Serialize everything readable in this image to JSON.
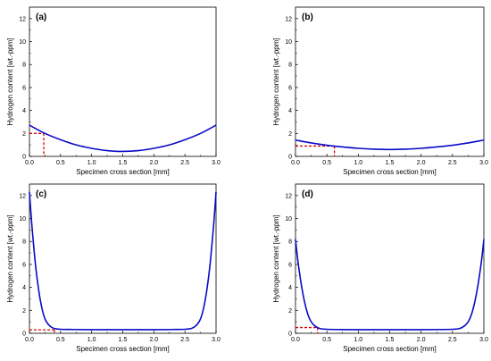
{
  "chart_data": [
    {
      "type": "line",
      "panel_label": "(a)",
      "xlabel": "Specimen cross section [mm]",
      "ylabel": "Hydrogen content [wt.-ppm]",
      "xlim": [
        0,
        3.0
      ],
      "ylim": [
        0,
        13
      ],
      "x_ticks": [
        "0.0",
        "0.5",
        "1.0",
        "1.5",
        "2.0",
        "2.5",
        "3.0"
      ],
      "y_ticks": [
        "0",
        "2",
        "4",
        "6",
        "8",
        "10",
        "12"
      ],
      "series": [
        {
          "color": "#0a0ac8",
          "x": [
            0,
            0.25,
            0.5,
            0.75,
            1.0,
            1.25,
            1.5,
            1.75,
            2.0,
            2.25,
            2.5,
            2.75,
            3.0
          ],
          "y": [
            2.72,
            2.0,
            1.45,
            1.0,
            0.7,
            0.5,
            0.43,
            0.5,
            0.7,
            1.0,
            1.45,
            2.0,
            2.72
          ]
        }
      ],
      "reference": {
        "x": 0.23,
        "y": 2.0,
        "color": "#e00000",
        "style": "dashed"
      }
    },
    {
      "type": "line",
      "panel_label": "(b)",
      "xlabel": "Specimen cross section [mm]",
      "ylabel": "Hydrogen content [wt.-ppm]",
      "xlim": [
        0,
        3.0
      ],
      "ylim": [
        0,
        13
      ],
      "x_ticks": [
        "0.0",
        "0.5",
        "1.0",
        "1.5",
        "2.0",
        "2.5",
        "3.0"
      ],
      "y_ticks": [
        "0",
        "2",
        "4",
        "6",
        "8",
        "10",
        "12"
      ],
      "series": [
        {
          "color": "#0a0ac8",
          "x": [
            0,
            0.25,
            0.5,
            0.75,
            1.0,
            1.25,
            1.5,
            1.75,
            2.0,
            2.25,
            2.5,
            2.75,
            3.0
          ],
          "y": [
            1.42,
            1.17,
            0.97,
            0.82,
            0.7,
            0.63,
            0.6,
            0.63,
            0.7,
            0.82,
            0.97,
            1.17,
            1.42
          ]
        }
      ],
      "reference": {
        "x": 0.62,
        "y": 0.9,
        "color": "#e00000",
        "style": "dashed"
      }
    },
    {
      "type": "line",
      "panel_label": "(c)",
      "xlabel": "Specimen cross section [mm]",
      "ylabel": "Hydrogen content [wt.-ppm]",
      "xlim": [
        0,
        3.0
      ],
      "ylim": [
        0,
        13
      ],
      "x_ticks": [
        "0.0",
        "0.5",
        "1.0",
        "1.5",
        "2.0",
        "2.5",
        "3.0"
      ],
      "y_ticks": [
        "0",
        "2",
        "4",
        "6",
        "8",
        "10",
        "12"
      ],
      "series": [
        {
          "color": "#0a0ac8",
          "x": [
            0,
            0.025,
            0.05,
            0.1,
            0.15,
            0.2,
            0.25,
            0.3,
            0.35,
            0.4,
            0.5,
            0.7,
            1.0,
            1.5,
            2.0,
            2.3,
            2.5,
            2.6,
            2.65,
            2.7,
            2.75,
            2.8,
            2.85,
            2.9,
            2.95,
            2.975,
            3.0
          ],
          "y": [
            12.3,
            10.4,
            8.7,
            5.8,
            3.7,
            2.2,
            1.25,
            0.8,
            0.55,
            0.42,
            0.35,
            0.33,
            0.32,
            0.32,
            0.32,
            0.33,
            0.35,
            0.42,
            0.55,
            0.8,
            1.25,
            2.2,
            3.7,
            5.8,
            8.7,
            10.4,
            12.3
          ]
        }
      ],
      "reference": {
        "x": 0.4,
        "y": 0.3,
        "color": "#e00000",
        "style": "dashed"
      }
    },
    {
      "type": "line",
      "panel_label": "(d)",
      "xlabel": "Specimen cross section [mm]",
      "ylabel": "Hydrogen content [wt.-ppm]",
      "xlim": [
        0,
        3.0
      ],
      "ylim": [
        0,
        13
      ],
      "x_ticks": [
        "0.0",
        "0.5",
        "1.0",
        "1.5",
        "2.0",
        "2.5",
        "3.0"
      ],
      "y_ticks": [
        "0",
        "2",
        "4",
        "6",
        "8",
        "10",
        "12"
      ],
      "series": [
        {
          "color": "#0a0ac8",
          "x": [
            0,
            0.025,
            0.05,
            0.1,
            0.15,
            0.2,
            0.25,
            0.3,
            0.35,
            0.4,
            0.5,
            0.7,
            1.0,
            1.5,
            2.0,
            2.3,
            2.5,
            2.6,
            2.65,
            2.7,
            2.75,
            2.8,
            2.85,
            2.9,
            2.95,
            2.975,
            3.0
          ],
          "y": [
            8.2,
            6.9,
            5.8,
            4.0,
            2.6,
            1.6,
            1.0,
            0.68,
            0.5,
            0.4,
            0.35,
            0.33,
            0.32,
            0.32,
            0.32,
            0.33,
            0.35,
            0.4,
            0.5,
            0.68,
            1.0,
            1.6,
            2.6,
            4.0,
            5.8,
            6.9,
            8.2
          ]
        }
      ],
      "reference": {
        "x": 0.35,
        "y": 0.5,
        "color": "#e00000",
        "style": "dashed"
      }
    }
  ]
}
